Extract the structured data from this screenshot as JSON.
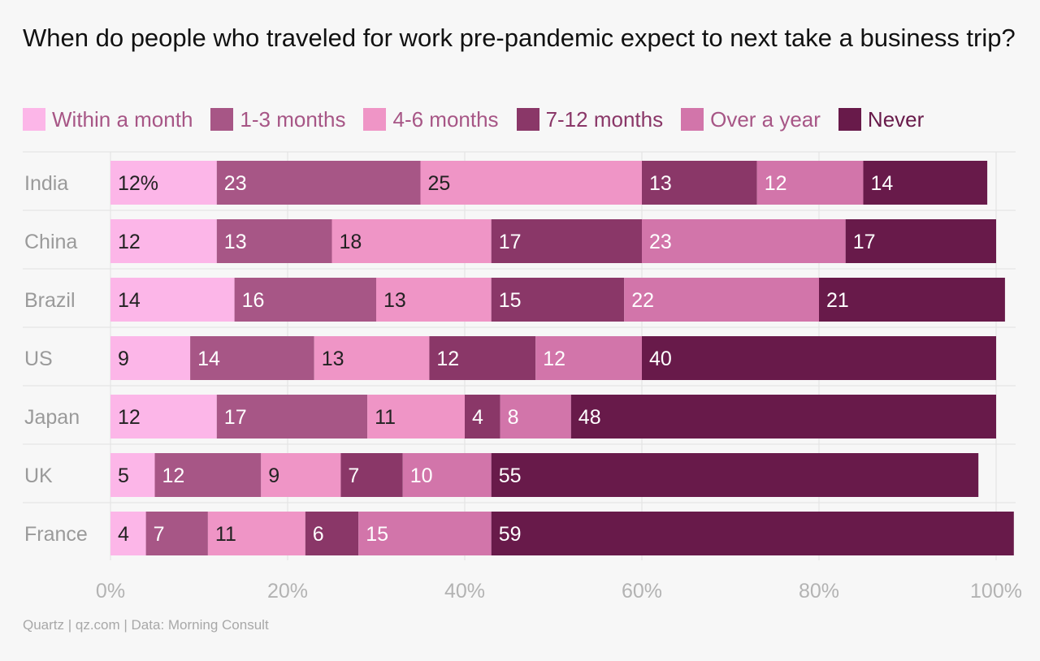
{
  "source": "Quartz | qz.com | Data: Morning Consult",
  "colors": {
    "series": [
      "#fcb6e8",
      "#a75686",
      "#ef95c6",
      "#8a3768",
      "#d275aa",
      "#681a4a"
    ],
    "legend_text": [
      "#a75686",
      "#a75686",
      "#a75686",
      "#8a3768",
      "#a75686",
      "#681a4a"
    ],
    "grid": "#e2e2e2",
    "tick_text": "#b3b3b3",
    "category_text": "#9a9a9a",
    "label_dark": "#222222",
    "label_light": "#ffffff"
  },
  "chart_data": {
    "type": "bar",
    "orientation": "horizontal",
    "stacked": true,
    "title": "When do people who traveled for work pre-pandemic expect to next take a business trip?",
    "categories": [
      "India",
      "China",
      "Brazil",
      "US",
      "Japan",
      "UK",
      "France"
    ],
    "series": [
      {
        "name": "Within a month",
        "values": [
          12,
          12,
          14,
          9,
          12,
          5,
          4
        ]
      },
      {
        "name": "1-3 months",
        "values": [
          23,
          13,
          16,
          14,
          17,
          12,
          7
        ]
      },
      {
        "name": "4-6 months",
        "values": [
          25,
          18,
          13,
          13,
          11,
          9,
          11
        ]
      },
      {
        "name": "7-12 months",
        "values": [
          13,
          17,
          15,
          12,
          4,
          7,
          6
        ]
      },
      {
        "name": "Over a year",
        "values": [
          12,
          23,
          22,
          12,
          8,
          10,
          15
        ]
      },
      {
        "name": "Never",
        "values": [
          14,
          17,
          21,
          40,
          48,
          55,
          59
        ]
      }
    ],
    "first_label_suffix": "%",
    "xlim": [
      0,
      100
    ],
    "xticks": [
      "0%",
      "20%",
      "40%",
      "60%",
      "80%",
      "100%"
    ],
    "xtick_values": [
      0,
      20,
      40,
      60,
      80,
      100
    ],
    "grid": true,
    "legend": "top-left"
  }
}
